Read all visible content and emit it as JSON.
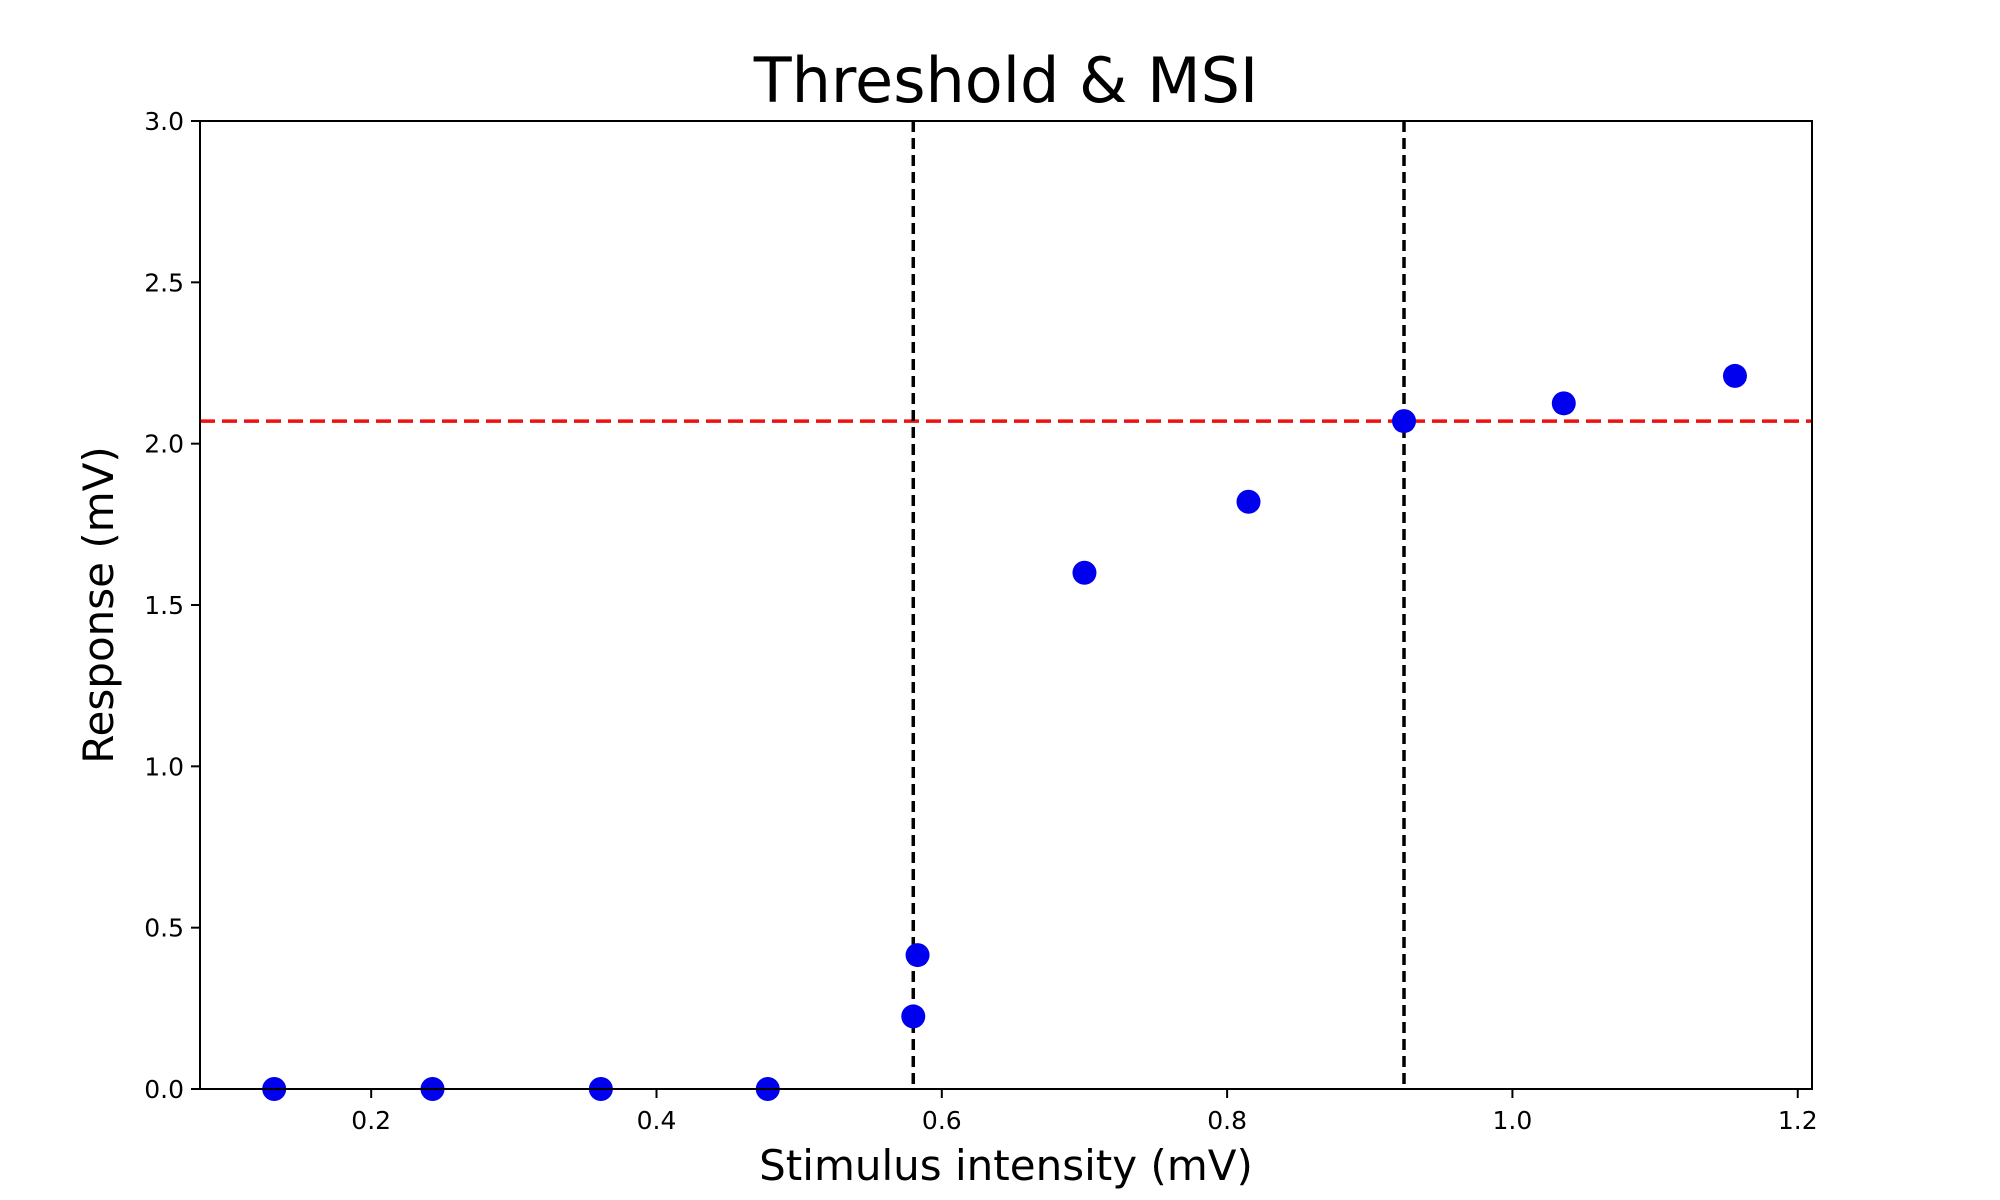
{
  "chart_data": {
    "type": "scatter",
    "title": "Threshold & MSI",
    "xlabel": "Stimulus intensity (mV)",
    "ylabel": "Response (mV)",
    "xlim": [
      0.08,
      1.21
    ],
    "ylim": [
      0.0,
      3.0
    ],
    "x_ticks": [
      "0.2",
      "0.4",
      "0.6",
      "0.8",
      "1.0",
      "1.2"
    ],
    "y_ticks": [
      "0.0",
      "0.5",
      "1.0",
      "1.5",
      "2.0",
      "2.5",
      "3.0"
    ],
    "grid": false,
    "series": [
      {
        "color": "#0000ee",
        "points": [
          {
            "x": 0.132,
            "y": 0.0
          },
          {
            "x": 0.243,
            "y": 0.0
          },
          {
            "x": 0.361,
            "y": 0.0
          },
          {
            "x": 0.478,
            "y": 0.0
          },
          {
            "x": 0.58,
            "y": 0.225
          },
          {
            "x": 0.583,
            "y": 0.415
          },
          {
            "x": 0.7,
            "y": 1.6
          },
          {
            "x": 0.815,
            "y": 1.82
          },
          {
            "x": 0.924,
            "y": 2.07
          },
          {
            "x": 1.036,
            "y": 2.125
          },
          {
            "x": 1.156,
            "y": 2.21
          }
        ]
      }
    ],
    "vertical_lines": [
      {
        "x": 0.58,
        "color": "#000000",
        "style": "dashed"
      },
      {
        "x": 0.924,
        "color": "#000000",
        "style": "dashed"
      }
    ],
    "horizontal_lines": [
      {
        "y": 2.07,
        "color": "#ee1111",
        "style": "dashed"
      }
    ]
  }
}
